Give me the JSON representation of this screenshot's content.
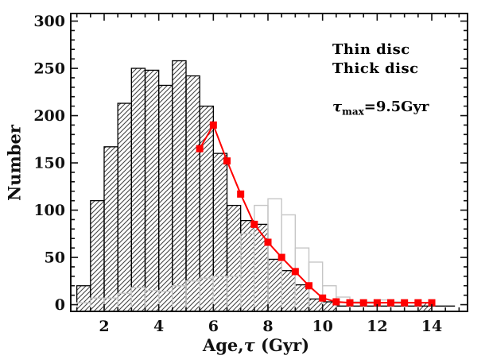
{
  "chart_data": {
    "type": "bar",
    "subtype": "histogram-with-model-line",
    "title": "",
    "xlabel": "Age,τ (Gyr)",
    "xlabel_parts": {
      "prefix": "Age,",
      "tau": "τ",
      "suffix": " (Gyr)"
    },
    "ylabel": "Number",
    "xlim": [
      0.777,
      15.31
    ],
    "ylim": [
      -7.1,
      308
    ],
    "x_major_ticks": [
      2,
      4,
      6,
      8,
      10,
      12,
      14
    ],
    "x_minor_step": 0.5,
    "x_minor_range": [
      1.0,
      15.0
    ],
    "y_major_ticks": [
      0,
      50,
      100,
      150,
      200,
      250,
      300
    ],
    "y_minor_step": 10,
    "y_minor_range": [
      0,
      300
    ],
    "grid": false,
    "legend_position": "top-right-inside",
    "bin_width": 0.5,
    "series": [
      {
        "name": "Thin disc",
        "style": "hatched-bar",
        "color": "#000000",
        "hatch_color": "#444444",
        "bin_start": 1.0,
        "values": [
          20,
          110,
          167,
          213,
          250,
          248,
          232,
          258,
          242,
          210,
          160,
          105,
          89,
          85,
          48,
          36,
          21,
          6,
          3,
          0,
          0,
          0,
          0,
          0,
          0,
          2
        ],
        "baseline_extent": [
          10.5,
          14.85
        ]
      },
      {
        "name": "Thick disc",
        "style": "outline-bar",
        "color": "#c6c6c6",
        "bin_start": 1.0,
        "values": [
          2,
          7,
          7,
          12,
          18,
          15,
          14,
          20,
          25,
          28,
          30,
          30,
          75,
          105,
          112,
          95,
          60,
          45,
          20,
          8,
          3,
          3,
          5,
          3,
          2,
          0
        ]
      }
    ],
    "model_line": {
      "name": "tau_max = 9.5 Gyr model",
      "color": "#ff0000",
      "marker": "square",
      "marker_size": 9,
      "x": [
        5.5,
        6.0,
        6.5,
        7.0,
        7.5,
        8.0,
        8.5,
        9.0,
        9.5,
        10.0,
        10.5,
        11.0,
        11.5,
        12.0,
        12.5,
        13.0,
        13.5,
        14.0
      ],
      "y": [
        165,
        190,
        152,
        117,
        85,
        66,
        50,
        35,
        20,
        7,
        3,
        2,
        2,
        2,
        2,
        2,
        2,
        2
      ]
    },
    "legend": [
      {
        "label": "Thin disc",
        "color": "#000000"
      },
      {
        "label": "Thick disc",
        "color": "#c6c6c6"
      },
      {
        "label": "τmax=9.5Gyr",
        "symbol": "τ",
        "subscript": "max",
        "value_text": "=9.5Gyr",
        "color": "#ff0000"
      }
    ],
    "frame_color": "#111111",
    "background": "#ffffff"
  }
}
